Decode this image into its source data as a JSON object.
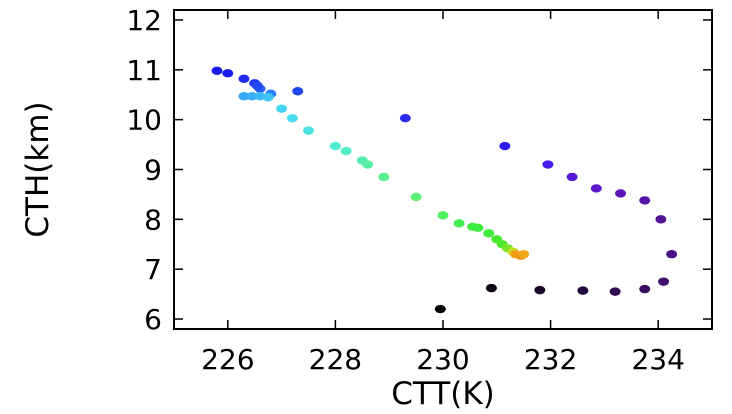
{
  "chart_data": {
    "type": "scatter",
    "title": "",
    "xlabel": "CTT(K)",
    "ylabel": "CTH(km)",
    "xlim": [
      225,
      235
    ],
    "ylim": [
      5.8,
      12.2
    ],
    "xticks": [
      226,
      228,
      230,
      232,
      234
    ],
    "yticks": [
      6,
      7,
      8,
      9,
      10,
      11,
      12
    ],
    "grid": false,
    "legend": "none",
    "color_encoding": "point colour varies continuously along a rainbow scale (black, purple, blue, cyan, green, yellow, orange); no colour bar is shown",
    "points": [
      {
        "x": 225.8,
        "y": 10.98,
        "color": "#1a1aee"
      },
      {
        "x": 226.0,
        "y": 10.93,
        "color": "#1a1aee"
      },
      {
        "x": 226.3,
        "y": 10.82,
        "color": "#1e2af0"
      },
      {
        "x": 226.5,
        "y": 10.73,
        "color": "#1e3af2"
      },
      {
        "x": 226.6,
        "y": 10.62,
        "color": "#2a5cf4"
      },
      {
        "x": 226.55,
        "y": 10.68,
        "color": "#2448f2"
      },
      {
        "x": 226.8,
        "y": 10.52,
        "color": "#2a80f6"
      },
      {
        "x": 227.3,
        "y": 10.57,
        "color": "#1e44ee"
      },
      {
        "x": 226.3,
        "y": 10.47,
        "color": "#3aa8f8"
      },
      {
        "x": 226.45,
        "y": 10.47,
        "color": "#3ab0f8"
      },
      {
        "x": 226.6,
        "y": 10.47,
        "color": "#3ab8f8"
      },
      {
        "x": 226.75,
        "y": 10.45,
        "color": "#40c4f6"
      },
      {
        "x": 227.0,
        "y": 10.22,
        "color": "#44d4f2"
      },
      {
        "x": 227.2,
        "y": 10.03,
        "color": "#48dcf0"
      },
      {
        "x": 227.5,
        "y": 9.78,
        "color": "#4ce4e4"
      },
      {
        "x": 228.0,
        "y": 9.47,
        "color": "#50ecd4"
      },
      {
        "x": 228.2,
        "y": 9.37,
        "color": "#54eec4"
      },
      {
        "x": 228.5,
        "y": 9.18,
        "color": "#58f0b0"
      },
      {
        "x": 228.6,
        "y": 9.1,
        "color": "#58f0a4"
      },
      {
        "x": 228.9,
        "y": 8.85,
        "color": "#5cf090"
      },
      {
        "x": 229.5,
        "y": 8.45,
        "color": "#5cf078"
      },
      {
        "x": 230.0,
        "y": 8.08,
        "color": "#4ef060"
      },
      {
        "x": 230.3,
        "y": 7.92,
        "color": "#44ee50"
      },
      {
        "x": 230.55,
        "y": 7.85,
        "color": "#3eec44"
      },
      {
        "x": 230.65,
        "y": 7.83,
        "color": "#3eec40"
      },
      {
        "x": 230.85,
        "y": 7.72,
        "color": "#40ea38"
      },
      {
        "x": 231.0,
        "y": 7.6,
        "color": "#44ea30"
      },
      {
        "x": 231.1,
        "y": 7.5,
        "color": "#4ce82c"
      },
      {
        "x": 231.2,
        "y": 7.42,
        "color": "#7ae428"
      },
      {
        "x": 231.3,
        "y": 7.35,
        "color": "#c4de20"
      },
      {
        "x": 231.35,
        "y": 7.3,
        "color": "#f0a018"
      },
      {
        "x": 231.45,
        "y": 7.27,
        "color": "#f09418"
      },
      {
        "x": 231.5,
        "y": 7.3,
        "color": "#f0a81c"
      },
      {
        "x": 229.3,
        "y": 10.03,
        "color": "#2a2af0"
      },
      {
        "x": 231.15,
        "y": 9.47,
        "color": "#2a1aee"
      },
      {
        "x": 231.95,
        "y": 9.1,
        "color": "#4a1aea"
      },
      {
        "x": 232.4,
        "y": 8.85,
        "color": "#5418d8"
      },
      {
        "x": 232.85,
        "y": 8.62,
        "color": "#5a16c8"
      },
      {
        "x": 233.3,
        "y": 8.52,
        "color": "#5a14b8"
      },
      {
        "x": 233.75,
        "y": 8.38,
        "color": "#5814a8"
      },
      {
        "x": 234.05,
        "y": 8.0,
        "color": "#501296"
      },
      {
        "x": 234.25,
        "y": 7.3,
        "color": "#481088"
      },
      {
        "x": 234.1,
        "y": 6.75,
        "color": "#400e70"
      },
      {
        "x": 233.75,
        "y": 6.6,
        "color": "#360c5e"
      },
      {
        "x": 233.2,
        "y": 6.55,
        "color": "#2e0a4e"
      },
      {
        "x": 232.6,
        "y": 6.57,
        "color": "#260840"
      },
      {
        "x": 231.8,
        "y": 6.58,
        "color": "#1a0628"
      },
      {
        "x": 230.9,
        "y": 6.62,
        "color": "#0c0410"
      },
      {
        "x": 229.95,
        "y": 6.2,
        "color": "#000000"
      }
    ]
  }
}
